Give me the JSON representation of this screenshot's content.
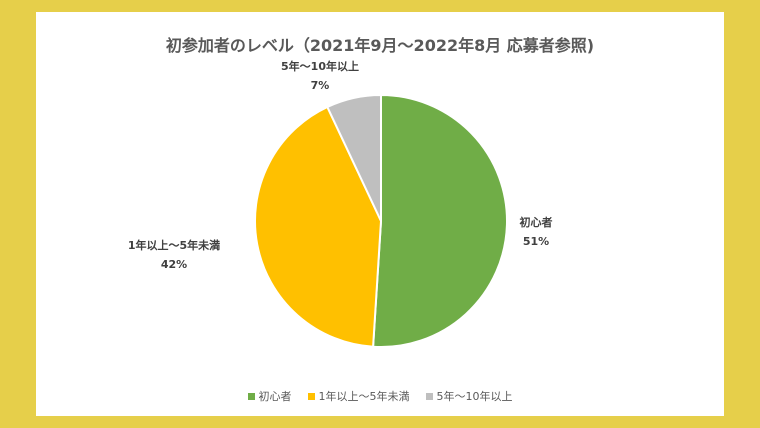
{
  "chart_data": {
    "type": "pie",
    "title": "初参加者のレベル（2021年9月～2022年8月 応募者参照)",
    "slices": [
      {
        "name": "初心者",
        "value": 51,
        "label": "51%",
        "color": "#70ad47"
      },
      {
        "name": "1年以上～5年未満",
        "value": 42,
        "label": "42%",
        "color": "#ffc000"
      },
      {
        "name": "5年～10年以上",
        "value": 7,
        "label": "7%",
        "color": "#bfbfbf"
      }
    ],
    "legend_position": "bottom"
  }
}
